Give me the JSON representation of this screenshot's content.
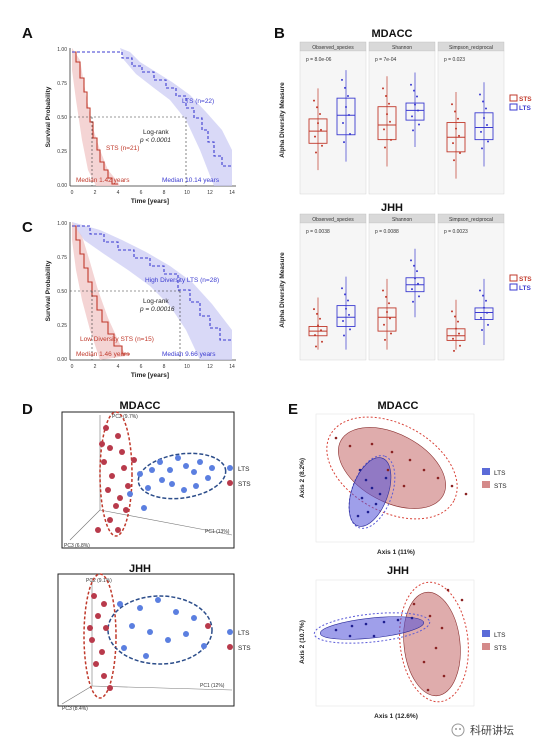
{
  "panels": {
    "A": {
      "letter": "A",
      "y_title": "Survival Probability",
      "x_title": "Time [years]",
      "y_ticks": [
        "1.00",
        "0.75",
        "0.50",
        "0.25",
        "0.00"
      ],
      "x_ticks": [
        "0",
        "2",
        "4",
        "6",
        "8",
        "10",
        "12",
        "14"
      ],
      "lts_label": "LTS (n=22)",
      "sts_label": "STS (n=21)",
      "logrank": "Log-rank",
      "pvalue": "p < 0.0001",
      "median_sts": "Median 1.42 years",
      "median_lts": "Median 10.14 years"
    },
    "C": {
      "letter": "C",
      "y_title": "Survival Probability",
      "x_title": "Time [years]",
      "y_ticks": [
        "1.00",
        "0.75",
        "0.50",
        "0.25",
        "0.00"
      ],
      "x_ticks": [
        "0",
        "2",
        "4",
        "6",
        "8",
        "10",
        "12",
        "14"
      ],
      "lts_label": "High Diversity LTS (n=28)",
      "sts_label": "Low Diversity STS (n=15)",
      "logrank": "Log-rank",
      "pvalue": "p = 0.00016",
      "median_sts": "Median 1.46 years",
      "median_lts": "Median 9.66 years"
    },
    "B": {
      "letter": "B",
      "y_title": "Alpha Diversity Measure",
      "mdacc_title": "MDACC",
      "jhh_title": "JHH",
      "facets": [
        "Observed_species",
        "Shannon",
        "Simpson_reciprocal"
      ],
      "mdacc_p": [
        "p = 8.0e-06",
        "p = 7e-04",
        "p = 0.023"
      ],
      "jhh_p": [
        "p = 0.0038",
        "p = 0.0088",
        "p = 0.0023"
      ],
      "legend": [
        "STS",
        "LTS"
      ]
    },
    "D": {
      "letter": "D",
      "mdacc_title": "MDACC",
      "jhh_title": "JHH",
      "legend": [
        "LTS",
        "STS"
      ],
      "mdacc_axes": [
        "PC2 (9.7%)",
        "PC1 (13%)",
        "PC3 (6.8%)"
      ],
      "jhh_axes": [
        "PC2 (9.1%)",
        "PC1 (12%)",
        "PC3 (8.4%)"
      ]
    },
    "E": {
      "letter": "E",
      "mdacc_title": "MDACC",
      "jhh_title": "JHH",
      "legend": [
        "LTS",
        "STS"
      ],
      "mdacc_xlabel": "Axis 1 (11%)",
      "mdacc_ylabel": "Axis 2 (8.2%)",
      "jhh_xlabel": "Axis 1 (12.6%)",
      "jhh_ylabel": "Axis 2 (10.7%)"
    }
  },
  "watermark": "科研讲坛",
  "colors": {
    "sts": "#c0392b",
    "lts": "#3b3bd0",
    "sts_fill": "#e9a3a3",
    "lts_fill": "#b9b9ee"
  }
}
